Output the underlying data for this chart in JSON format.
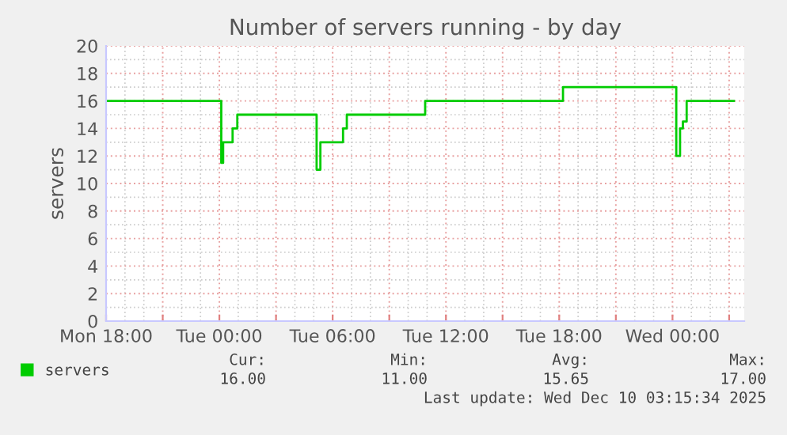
{
  "chart_data": {
    "type": "step",
    "title": "Number of servers running - by day",
    "ylabel": "servers",
    "x": [
      "2025-12-08T18:00",
      "2025-12-09T00:00",
      "2025-12-09T00:06",
      "2025-12-09T00:12",
      "2025-12-09T00:33",
      "2025-12-09T00:42",
      "2025-12-09T00:54",
      "2025-12-09T00:57",
      "2025-12-09T05:00",
      "2025-12-09T05:09",
      "2025-12-09T05:15",
      "2025-12-09T05:21",
      "2025-12-09T06:30",
      "2025-12-09T06:33",
      "2025-12-09T06:42",
      "2025-12-09T06:45",
      "2025-12-09T10:45",
      "2025-12-09T10:54",
      "2025-12-09T18:09",
      "2025-12-09T18:12",
      "2025-12-10T00:03",
      "2025-12-10T00:12",
      "2025-12-10T00:18",
      "2025-12-10T00:24",
      "2025-12-10T00:33",
      "2025-12-10T00:45",
      "2025-12-10T03:15"
    ],
    "series": [
      {
        "name": "servers",
        "color": "#00cc00",
        "values": [
          16,
          16,
          11.5,
          13,
          13,
          14,
          14,
          15,
          15,
          11,
          11,
          13,
          13,
          14,
          14,
          15,
          15,
          16,
          16,
          17,
          17,
          12,
          12,
          14,
          14.5,
          16,
          16
        ]
      }
    ],
    "xlim": [
      "2025-12-08T18:00",
      "2025-12-10T03:48"
    ],
    "xticks": [
      {
        "value": "2025-12-08T18:00",
        "label": "Mon 18:00"
      },
      {
        "value": "2025-12-08T21:00",
        "label": null
      },
      {
        "value": "2025-12-09T00:00",
        "label": "Tue 00:00"
      },
      {
        "value": "2025-12-09T03:00",
        "label": null
      },
      {
        "value": "2025-12-09T06:00",
        "label": "Tue 06:00"
      },
      {
        "value": "2025-12-09T09:00",
        "label": null
      },
      {
        "value": "2025-12-09T12:00",
        "label": "Tue 12:00"
      },
      {
        "value": "2025-12-09T15:00",
        "label": null
      },
      {
        "value": "2025-12-09T18:00",
        "label": "Tue 18:00"
      },
      {
        "value": "2025-12-09T21:00",
        "label": null
      },
      {
        "value": "2025-12-10T00:00",
        "label": "Wed 00:00"
      },
      {
        "value": "2025-12-10T03:00",
        "label": null
      }
    ],
    "ylim": [
      0,
      20
    ],
    "yticks": [
      0,
      2,
      4,
      6,
      8,
      10,
      12,
      14,
      16,
      18,
      20
    ],
    "grid": true,
    "legend": "bottom left",
    "marker": "none",
    "line_style": "solid",
    "annotations": [
      "Cur:",
      "Min:",
      "Avg:",
      "Max:",
      "16.00",
      "11.00",
      "15.65",
      "17.00",
      "Last update: Wed Dec 10 03:15:34 2025"
    ]
  }
}
